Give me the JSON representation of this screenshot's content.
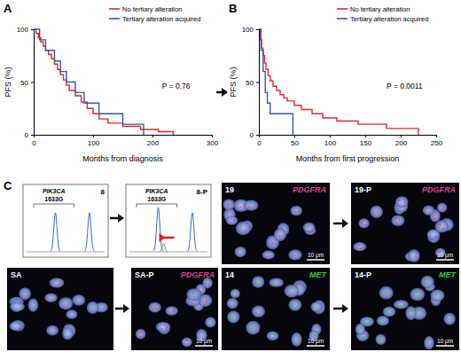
{
  "chart_data": [
    {
      "type": "line",
      "title": "A",
      "x_label": "Months from diagnosis",
      "y_label": "PFS (%)",
      "xlim": [
        0,
        300
      ],
      "xticks": [
        0,
        100,
        200,
        300
      ],
      "ylim": [
        0,
        100
      ],
      "yticks": [
        0,
        50,
        100
      ],
      "line_style": "step",
      "legend": "top-right",
      "annotations": [
        "P = 0.76"
      ],
      "series": [
        {
          "name": "No tertiary alteration",
          "color": "#e0282a",
          "x": [
            0,
            4,
            8,
            12,
            16,
            20,
            25,
            30,
            35,
            40,
            45,
            50,
            55,
            60,
            70,
            80,
            90,
            100,
            110,
            125,
            150,
            180,
            210,
            235
          ],
          "values": [
            100,
            96,
            92,
            88,
            84,
            80,
            76,
            72,
            67,
            62,
            57,
            52,
            47,
            42,
            37,
            31,
            25,
            20,
            15,
            11,
            8,
            5,
            3,
            0
          ]
        },
        {
          "name": "Tertiary alteration acquired",
          "color": "#3b55a6",
          "x": [
            0,
            10,
            20,
            35,
            45,
            55,
            70,
            85,
            110,
            150,
            185
          ],
          "values": [
            100,
            90,
            80,
            70,
            60,
            50,
            40,
            30,
            20,
            10,
            0
          ]
        }
      ]
    },
    {
      "type": "line",
      "title": "B",
      "x_label": "Months from first progression",
      "y_label": "PFS (%)",
      "xlim": [
        0,
        250
      ],
      "xticks": [
        0,
        50,
        100,
        150,
        200,
        250
      ],
      "ylim": [
        0,
        100
      ],
      "yticks": [
        0,
        50,
        100
      ],
      "line_style": "step",
      "legend": "top-right",
      "annotations": [
        "P = 0.0011"
      ],
      "series": [
        {
          "name": "No tertiary alteration",
          "color": "#e0282a",
          "x": [
            0,
            2,
            4,
            6,
            8,
            10,
            13,
            16,
            20,
            25,
            30,
            35,
            40,
            50,
            60,
            75,
            90,
            110,
            140,
            180,
            225
          ],
          "values": [
            100,
            90,
            82,
            75,
            68,
            62,
            56,
            51,
            46,
            42,
            38,
            35,
            32,
            28,
            24,
            20,
            16,
            13,
            10,
            6,
            0
          ]
        },
        {
          "name": "Tertiary alteration acquired",
          "color": "#3b55a6",
          "x": [
            0,
            3,
            6,
            9,
            12,
            16,
            48
          ],
          "values": [
            100,
            80,
            60,
            40,
            30,
            20,
            0
          ]
        }
      ]
    }
  ],
  "panel_c": {
    "label": "C",
    "electropherograms": [
      {
        "label": "8",
        "gene": "PIK3CA",
        "variant": "1633G"
      },
      {
        "label": "8-P",
        "gene": "PIK3CA",
        "variant": "1633G"
      }
    ],
    "fish": [
      {
        "label": "19",
        "gene": "PDGFRA",
        "color": "#e0408c",
        "scale_bar": "10 μm"
      },
      {
        "label": "19-P",
        "gene": "PDGFRA",
        "color": "#e0408c",
        "scale_bar": "10 μm"
      },
      {
        "label": "SA"
      },
      {
        "label": "SA-P",
        "gene": "PDGFRA",
        "color": "#e0408c",
        "scale_bar": "10 μm"
      },
      {
        "label": "14",
        "gene": "MET",
        "color": "#3cc43c",
        "scale_bar": "10 μm"
      },
      {
        "label": "14-P",
        "gene": "MET",
        "color": "#3cc43c",
        "scale_bar": "10 μm"
      }
    ]
  }
}
